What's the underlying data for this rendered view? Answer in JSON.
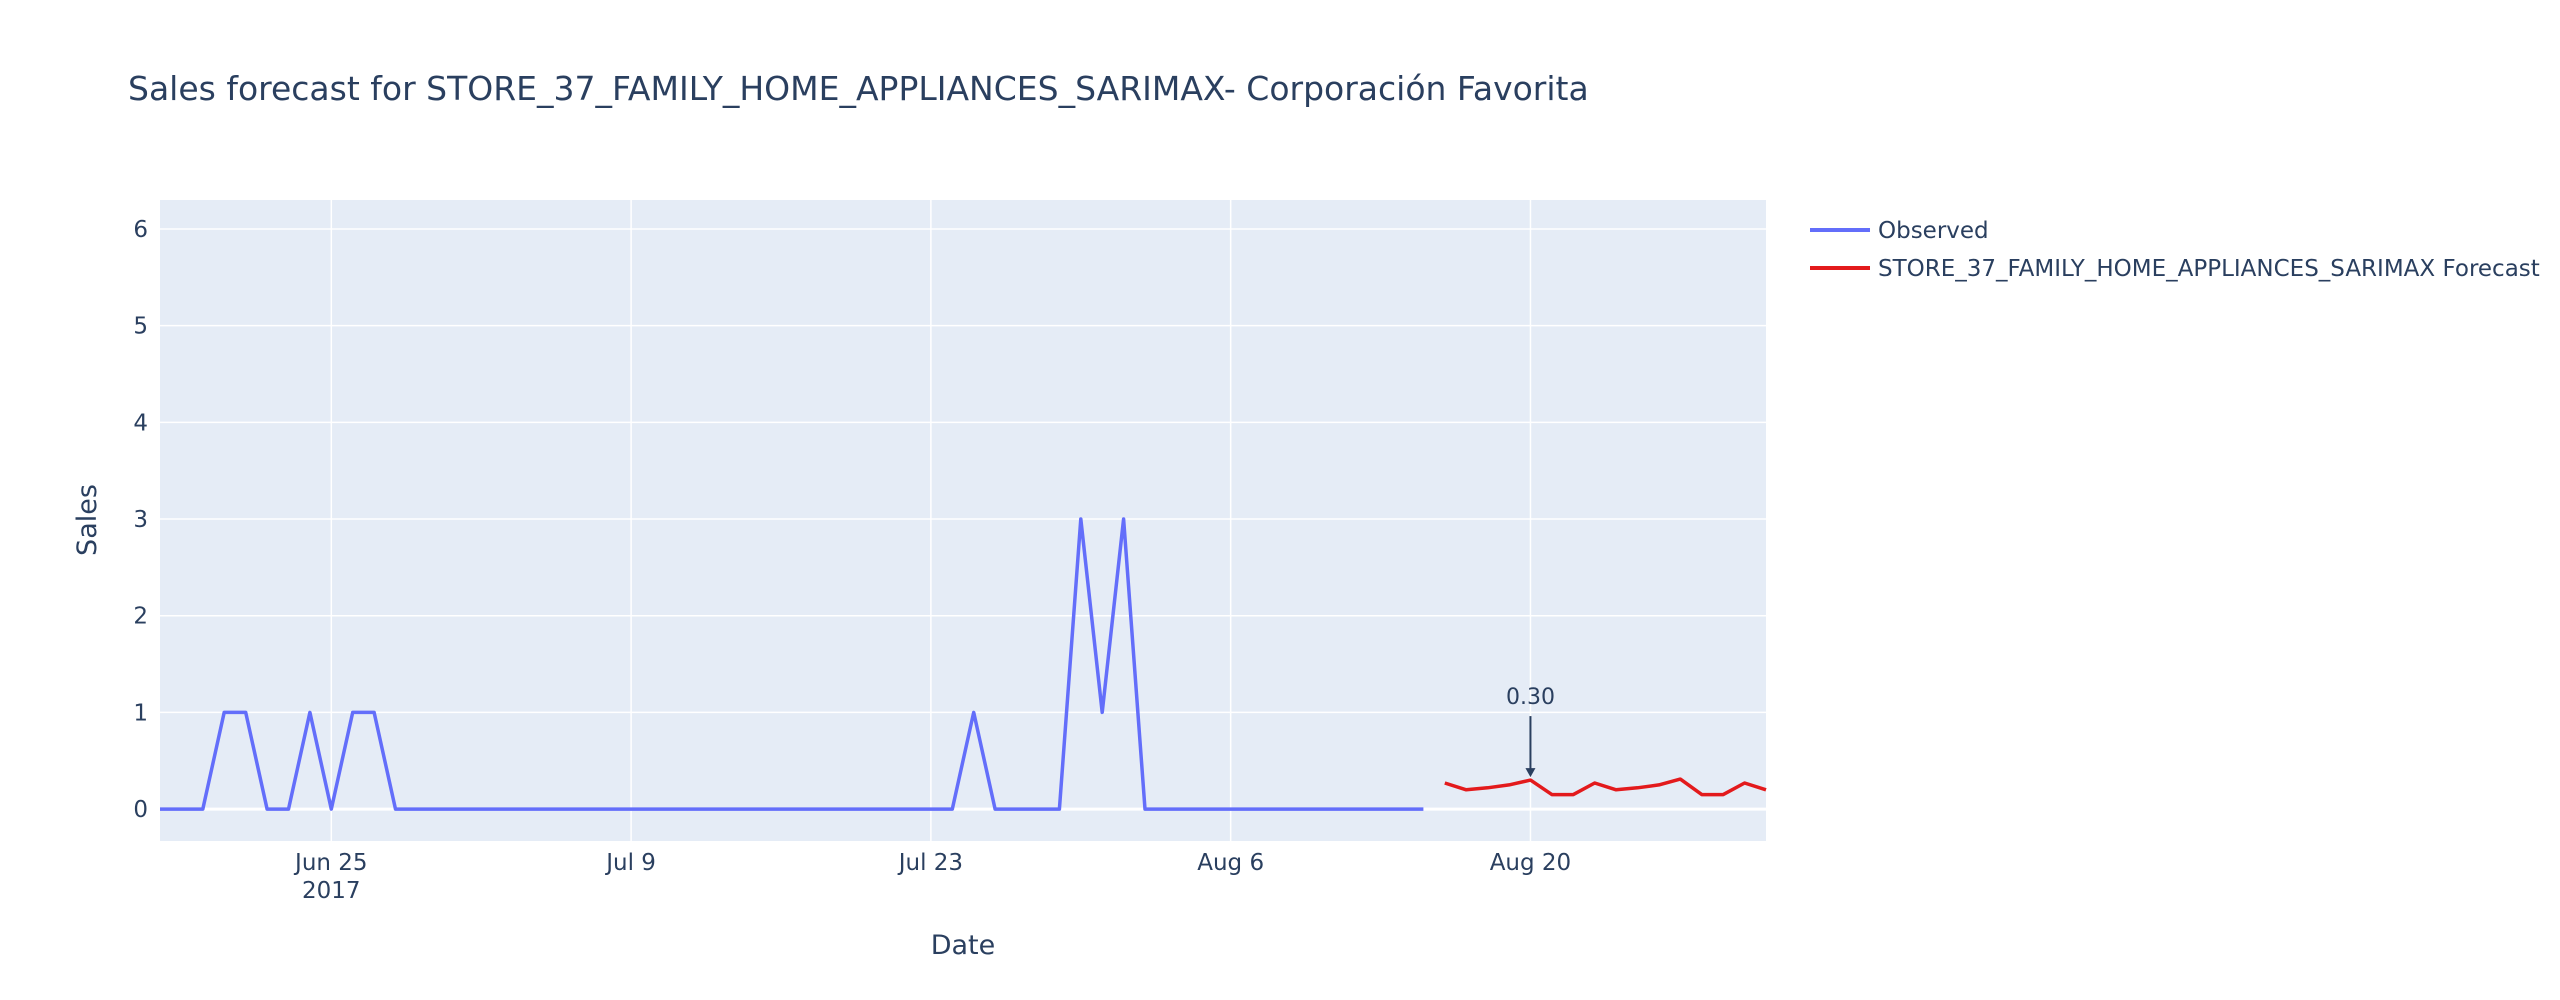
{
  "chart_data": {
    "type": "line",
    "title": "Sales forecast for STORE_37_FAMILY_HOME_APPLIANCES_SARIMAX- Corporación Favorita",
    "xlabel": "Date",
    "ylabel": "Sales",
    "x_range": [
      "2017-06-17",
      "2017-08-31"
    ],
    "ylim": [
      -0.33,
      6.3
    ],
    "y_ticks": [
      0,
      1,
      2,
      3,
      4,
      5,
      6
    ],
    "x_ticks": [
      {
        "date": "2017-06-25",
        "label": "Jun 25",
        "sublabel": "2017"
      },
      {
        "date": "2017-07-09",
        "label": "Jul 9",
        "sublabel": ""
      },
      {
        "date": "2017-07-23",
        "label": "Jul 23",
        "sublabel": ""
      },
      {
        "date": "2017-08-06",
        "label": "Aug 6",
        "sublabel": ""
      },
      {
        "date": "2017-08-20",
        "label": "Aug 20",
        "sublabel": ""
      }
    ],
    "grid": true,
    "legend_position": "right",
    "series": [
      {
        "name": "Observed",
        "color": "#636efa",
        "points": [
          [
            "2017-06-17",
            0
          ],
          [
            "2017-06-18",
            0
          ],
          [
            "2017-06-19",
            0
          ],
          [
            "2017-06-20",
            1
          ],
          [
            "2017-06-21",
            1
          ],
          [
            "2017-06-22",
            0
          ],
          [
            "2017-06-23",
            0
          ],
          [
            "2017-06-24",
            1
          ],
          [
            "2017-06-25",
            0
          ],
          [
            "2017-06-26",
            1
          ],
          [
            "2017-06-27",
            1
          ],
          [
            "2017-06-28",
            0
          ],
          [
            "2017-06-29",
            0
          ],
          [
            "2017-06-30",
            0
          ],
          [
            "2017-07-01",
            0
          ],
          [
            "2017-07-02",
            0
          ],
          [
            "2017-07-03",
            0
          ],
          [
            "2017-07-04",
            0
          ],
          [
            "2017-07-05",
            0
          ],
          [
            "2017-07-06",
            0
          ],
          [
            "2017-07-07",
            0
          ],
          [
            "2017-07-08",
            0
          ],
          [
            "2017-07-09",
            0
          ],
          [
            "2017-07-10",
            0
          ],
          [
            "2017-07-11",
            0
          ],
          [
            "2017-07-12",
            0
          ],
          [
            "2017-07-13",
            0
          ],
          [
            "2017-07-14",
            0
          ],
          [
            "2017-07-15",
            0
          ],
          [
            "2017-07-16",
            0
          ],
          [
            "2017-07-17",
            0
          ],
          [
            "2017-07-18",
            0
          ],
          [
            "2017-07-19",
            0
          ],
          [
            "2017-07-20",
            0
          ],
          [
            "2017-07-21",
            0
          ],
          [
            "2017-07-22",
            0
          ],
          [
            "2017-07-23",
            0
          ],
          [
            "2017-07-24",
            0
          ],
          [
            "2017-07-25",
            1
          ],
          [
            "2017-07-26",
            0
          ],
          [
            "2017-07-27",
            0
          ],
          [
            "2017-07-28",
            0
          ],
          [
            "2017-07-29",
            0
          ],
          [
            "2017-07-30",
            3
          ],
          [
            "2017-07-31",
            1
          ],
          [
            "2017-08-01",
            3
          ],
          [
            "2017-08-02",
            0
          ],
          [
            "2017-08-03",
            0
          ],
          [
            "2017-08-04",
            0
          ],
          [
            "2017-08-05",
            0
          ],
          [
            "2017-08-06",
            0
          ],
          [
            "2017-08-07",
            0
          ],
          [
            "2017-08-08",
            0
          ],
          [
            "2017-08-09",
            0
          ],
          [
            "2017-08-10",
            0
          ],
          [
            "2017-08-11",
            0
          ],
          [
            "2017-08-12",
            0
          ],
          [
            "2017-08-13",
            0
          ],
          [
            "2017-08-14",
            0
          ],
          [
            "2017-08-15",
            0
          ]
        ]
      },
      {
        "name": "STORE_37_FAMILY_HOME_APPLIANCES_SARIMAX Forecast",
        "color": "#e31a1c",
        "points": [
          [
            "2017-08-16",
            0.27
          ],
          [
            "2017-08-17",
            0.2
          ],
          [
            "2017-08-18",
            0.22
          ],
          [
            "2017-08-19",
            0.25
          ],
          [
            "2017-08-20",
            0.3
          ],
          [
            "2017-08-21",
            0.15
          ],
          [
            "2017-08-22",
            0.15
          ],
          [
            "2017-08-23",
            0.27
          ],
          [
            "2017-08-24",
            0.2
          ],
          [
            "2017-08-25",
            0.22
          ],
          [
            "2017-08-26",
            0.25
          ],
          [
            "2017-08-27",
            0.31
          ],
          [
            "2017-08-28",
            0.15
          ],
          [
            "2017-08-29",
            0.15
          ],
          [
            "2017-08-30",
            0.27
          ],
          [
            "2017-08-31",
            0.2
          ]
        ]
      }
    ],
    "annotations": [
      {
        "x": "2017-08-20",
        "y": 0.3,
        "text": "0.30"
      }
    ]
  }
}
